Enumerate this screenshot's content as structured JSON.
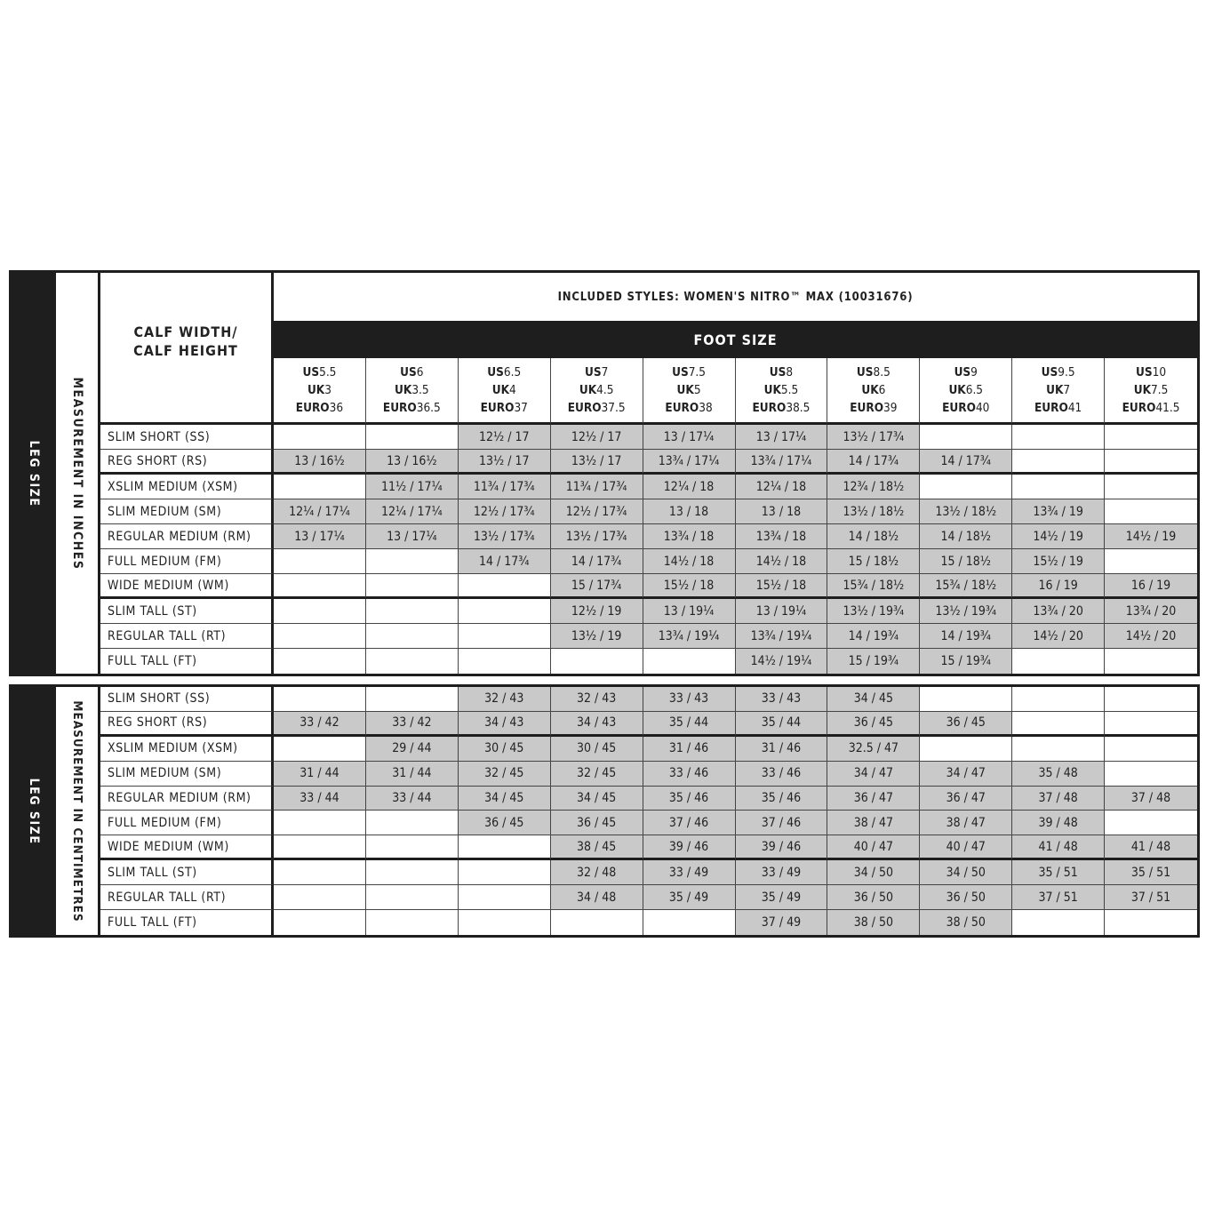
{
  "header": {
    "calf_label_line1": "CALF WIDTH/",
    "calf_label_line2": "CALF HEIGHT",
    "included_styles": "INCLUDED STYLES:  WOMEN'S NITRO™ MAX (10031676)",
    "foot_size": "FOOT SIZE"
  },
  "foot_sizes": [
    {
      "us": "5.5",
      "uk": "3",
      "euro": "36"
    },
    {
      "us": "6",
      "uk": "3.5",
      "euro": "36.5"
    },
    {
      "us": "6.5",
      "uk": "4",
      "euro": "37"
    },
    {
      "us": "7",
      "uk": "4.5",
      "euro": "37.5"
    },
    {
      "us": "7.5",
      "uk": "5",
      "euro": "38"
    },
    {
      "us": "8",
      "uk": "5.5",
      "euro": "38.5"
    },
    {
      "us": "8.5",
      "uk": "6",
      "euro": "39"
    },
    {
      "us": "9",
      "uk": "6.5",
      "euro": "40"
    },
    {
      "us": "9.5",
      "uk": "7",
      "euro": "41"
    },
    {
      "us": "10",
      "uk": "7.5",
      "euro": "41.5"
    }
  ],
  "size_prefix": {
    "us": "US",
    "uk": "UK",
    "euro": "EURO"
  },
  "leg_sizes": [
    "SLIM SHORT (SS)",
    "REG SHORT (RS)",
    "XSLIM MEDIUM (XSM)",
    "SLIM MEDIUM (SM)",
    "REGULAR  MEDIUM (RM)",
    "FULL MEDIUM (FM)",
    "WIDE MEDIUM (WM)",
    "SLIM TALL (ST)",
    "REGULAR TALL (RT)",
    "FULL TALL (FT)"
  ],
  "colors": {
    "shaded_cell": "#c9c9c9",
    "band": "#1e1e1e"
  },
  "tables": [
    {
      "side_label": "LEG SIZE",
      "unit_label": "MEASUREMENT IN INCHES",
      "rows": [
        [
          "",
          "",
          "12½ / 17",
          "12½ / 17",
          "13 / 17¼",
          "13 / 17¼",
          "13½ / 17¾",
          "",
          "",
          ""
        ],
        [
          "13 / 16½",
          "13 / 16½",
          "13½ / 17",
          "13½ / 17",
          "13¾ / 17¼",
          "13¾ / 17¼",
          "14 / 17¾",
          "14 / 17¾",
          "",
          ""
        ],
        [
          "",
          "11½ / 17¼",
          "11¾ / 17¾",
          "11¾ / 17¾",
          "12¼ / 18",
          "12¼ / 18",
          "12¾ / 18½",
          "",
          "",
          ""
        ],
        [
          "12¼ / 17¼",
          "12¼ / 17¼",
          "12½ / 17¾",
          "12½ / 17¾",
          "13 / 18",
          "13 / 18",
          "13½ / 18½",
          "13½ / 18½",
          "13¾ / 19",
          ""
        ],
        [
          "13 / 17¼",
          "13 / 17¼",
          "13½ / 17¾",
          "13½ / 17¾",
          "13¾ / 18",
          "13¾ / 18",
          "14 / 18½",
          "14 / 18½",
          "14½ / 19",
          "14½ / 19"
        ],
        [
          "",
          "",
          "14 / 17¾",
          "14 / 17¾",
          "14½ / 18",
          "14½ / 18",
          "15 / 18½",
          "15 / 18½",
          "15½ / 19",
          ""
        ],
        [
          "",
          "",
          "",
          "15 / 17¾",
          "15½ / 18",
          "15½ / 18",
          "15¾ / 18½",
          "15¾ / 18½",
          "16 / 19",
          "16 / 19"
        ],
        [
          "",
          "",
          "",
          "12½ / 19",
          "13 / 19¼",
          "13 / 19¼",
          "13½ / 19¾",
          "13½ / 19¾",
          "13¾ / 20",
          "13¾ / 20"
        ],
        [
          "",
          "",
          "",
          "13½ / 19",
          "13¾ / 19¼",
          "13¾ / 19¼",
          "14 / 19¾",
          "14 / 19¾",
          "14½ / 20",
          "14½ / 20"
        ],
        [
          "",
          "",
          "",
          "",
          "",
          "14½ / 19¼",
          "15 / 19¾",
          "15 / 19¾",
          "",
          ""
        ]
      ]
    },
    {
      "side_label": "LEG SIZE",
      "unit_label": "MEASUREMENT IN CENTIMETRES",
      "rows": [
        [
          "",
          "",
          "32 / 43",
          "32 / 43",
          "33 / 43",
          "33 / 43",
          "34 / 45",
          "",
          "",
          ""
        ],
        [
          "33 / 42",
          "33 / 42",
          "34 / 43",
          "34 / 43",
          "35 / 44",
          "35 / 44",
          "36 / 45",
          "36 / 45",
          "",
          ""
        ],
        [
          "",
          "29 / 44",
          "30 / 45",
          "30 / 45",
          "31 / 46",
          "31 / 46",
          "32.5 / 47",
          "",
          "",
          ""
        ],
        [
          "31 / 44",
          "31 / 44",
          "32 / 45",
          "32 / 45",
          "33 / 46",
          "33 / 46",
          "34 / 47",
          "34 / 47",
          "35 / 48",
          ""
        ],
        [
          "33 / 44",
          "33 / 44",
          "34 / 45",
          "34 / 45",
          "35 / 46",
          "35 / 46",
          "36 / 47",
          "36 / 47",
          "37 / 48",
          "37 / 48"
        ],
        [
          "",
          "",
          "36 / 45",
          "36 / 45",
          "37 / 46",
          "37 / 46",
          "38 / 47",
          "38 / 47",
          "39 / 48",
          ""
        ],
        [
          "",
          "",
          "",
          "38 / 45",
          "39 / 46",
          "39 / 46",
          "40 / 47",
          "40 / 47",
          "41 / 48",
          "41 / 48"
        ],
        [
          "",
          "",
          "",
          "32 / 48",
          "33 / 49",
          "33 / 49",
          "34 / 50",
          "34 / 50",
          "35 / 51",
          "35 / 51"
        ],
        [
          "",
          "",
          "",
          "34 / 48",
          "35 / 49",
          "35 / 49",
          "36 / 50",
          "36 / 50",
          "37 / 51",
          "37 / 51"
        ],
        [
          "",
          "",
          "",
          "",
          "",
          "37 / 49",
          "38 / 50",
          "38 / 50",
          "",
          ""
        ]
      ]
    }
  ]
}
